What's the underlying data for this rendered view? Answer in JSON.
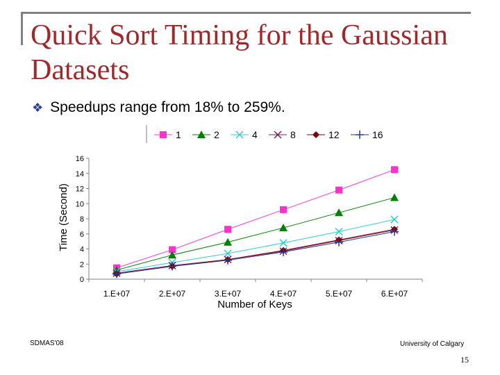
{
  "slide": {
    "title": "Quick Sort Timing for the Gaussian Datasets",
    "bullet_icon": "diamond-bullet-icon",
    "bullet_text": "Speedups range from 18% to 259%.",
    "footer_left": "SDMAS'08",
    "footer_right": "University of Calgary",
    "page_number": "15"
  },
  "chart_data": {
    "type": "line",
    "title": "",
    "xlabel": "Number of Keys",
    "ylabel": "Time (Second)",
    "categories": [
      "1.E+07",
      "2.E+07",
      "3.E+07",
      "4.E+07",
      "5.E+07",
      "6.E+07"
    ],
    "ylim": [
      0,
      16
    ],
    "yticks": [
      0,
      2,
      4,
      6,
      8,
      10,
      12,
      14,
      16
    ],
    "grid": false,
    "legend_position": "top",
    "series": [
      {
        "name": "1",
        "color": "#ff33cc",
        "marker": "square",
        "values": [
          1.5,
          3.9,
          6.6,
          9.2,
          11.8,
          14.5
        ]
      },
      {
        "name": "2",
        "color": "#008000",
        "marker": "triangle",
        "values": [
          1.2,
          3.2,
          4.9,
          6.8,
          8.8,
          10.8
        ]
      },
      {
        "name": "4",
        "color": "#33cccc",
        "marker": "x",
        "values": [
          1.0,
          2.2,
          3.4,
          4.8,
          6.3,
          7.9
        ]
      },
      {
        "name": "8",
        "color": "#7a2060",
        "marker": "x",
        "values": [
          0.8,
          1.8,
          2.6,
          3.7,
          5.1,
          6.5
        ]
      },
      {
        "name": "12",
        "color": "#800000",
        "marker": "diamond",
        "values": [
          0.7,
          1.7,
          2.6,
          3.8,
          5.2,
          6.6
        ]
      },
      {
        "name": "16",
        "color": "#1f3a8c",
        "marker": "plus",
        "values": [
          0.7,
          1.7,
          2.5,
          3.6,
          4.9,
          6.3
        ]
      }
    ]
  }
}
